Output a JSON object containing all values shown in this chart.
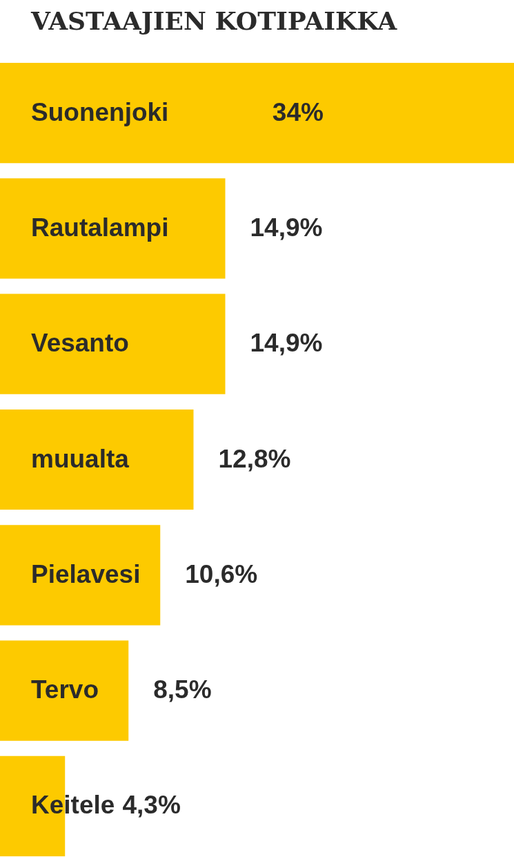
{
  "chart_data": {
    "type": "bar",
    "orientation": "horizontal",
    "title": "VASTAAJIEN KOTIPAIKKA",
    "categories": [
      "Suonenjoki",
      "Rautalampi",
      "Vesanto",
      "muualta",
      "Pielavesi",
      "Tervo",
      "Keitele"
    ],
    "values": [
      34,
      14.9,
      14.9,
      12.8,
      10.6,
      8.5,
      4.3
    ],
    "value_labels": [
      "34%",
      "14,9%",
      "14,9%",
      "12,8%",
      "10,6%",
      "8,5%",
      "4,3%"
    ],
    "color": "#fdca00",
    "xlim": [
      0,
      34
    ]
  }
}
